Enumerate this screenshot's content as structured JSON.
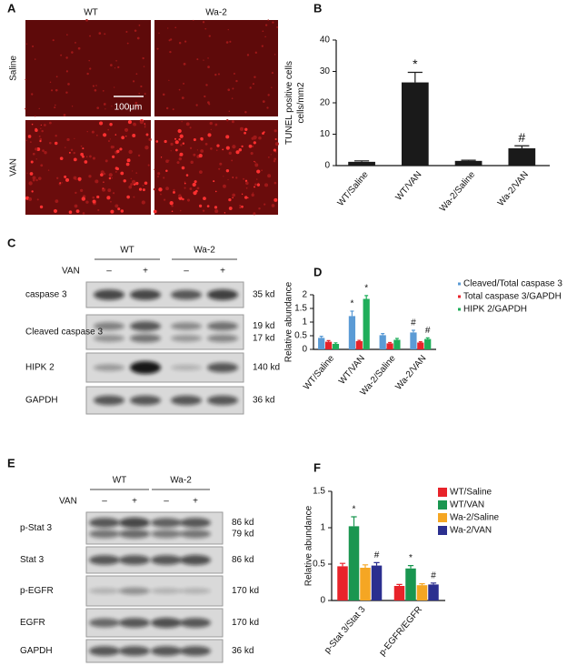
{
  "panel_labels": [
    "A",
    "B",
    "C",
    "D",
    "E",
    "F"
  ],
  "micrographs": {
    "columns": [
      "WT",
      "Wa-2"
    ],
    "rows": [
      "Saline",
      "VAN"
    ],
    "scale_bar": "100μm"
  },
  "blot_c": {
    "groups": [
      "WT",
      "Wa-2"
    ],
    "treatment": "VAN",
    "signs": [
      "–",
      "+",
      "–",
      "+"
    ],
    "rows": [
      {
        "label": "caspase 3",
        "sizes": [
          "35 kd"
        ]
      },
      {
        "label": "Cleaved caspase 3",
        "sizes": [
          "19 kd",
          "17 kd"
        ]
      },
      {
        "label": "HIPK 2",
        "sizes": [
          "140 kd"
        ]
      },
      {
        "label": "GAPDH",
        "sizes": [
          "36 kd"
        ]
      }
    ]
  },
  "blot_e": {
    "groups": [
      "WT",
      "Wa-2"
    ],
    "treatment": "VAN",
    "signs": [
      "–",
      "+",
      "–",
      "+"
    ],
    "rows": [
      {
        "label": "p-Stat 3",
        "sizes": [
          "86 kd",
          "79 kd"
        ]
      },
      {
        "label": "Stat 3",
        "sizes": [
          "86 kd"
        ]
      },
      {
        "label": "p-EGFR",
        "sizes": [
          "170 kd"
        ]
      },
      {
        "label": "EGFR",
        "sizes": [
          "170 kd"
        ]
      },
      {
        "label": "GAPDH",
        "sizes": [
          "36 kd"
        ]
      }
    ]
  },
  "chart_data": [
    {
      "type": "bar",
      "ylabel": [
        "TUNEL positive cells",
        "cells/mm2"
      ],
      "categories": [
        "WT/Saline",
        "WT/VAN",
        "Wa-2/Saline",
        "Wa-2/VAN"
      ],
      "values": [
        1.2,
        26.5,
        1.5,
        5.5
      ],
      "errors": [
        0.3,
        3.2,
        0.2,
        0.8
      ],
      "annotations": [
        null,
        "*",
        null,
        "#"
      ],
      "color": "#1a1a1a",
      "ylim": [
        0,
        40
      ],
      "yticks": [
        0,
        10,
        20,
        30,
        40
      ]
    },
    {
      "type": "bar",
      "ylabel": [
        "Relative abundance"
      ],
      "categories": [
        "WT/Saline",
        "WT/VAN",
        "Wa-2/Saline",
        "Wa-2/VAN"
      ],
      "series": [
        {
          "name": "Cleaved/Total caspase 3",
          "color": "#5b9bd5",
          "values": [
            0.42,
            1.22,
            0.52,
            0.62
          ],
          "errors": [
            0.06,
            0.18,
            0.06,
            0.08
          ],
          "annotations": [
            null,
            "*",
            null,
            "#"
          ]
        },
        {
          "name": "Total caspase 3/GAPDH",
          "color": "#e8232a",
          "values": [
            0.28,
            0.3,
            0.22,
            0.25
          ],
          "errors": [
            0.04,
            0.03,
            0.03,
            0.03
          ],
          "annotations": [
            null,
            null,
            null,
            null
          ]
        },
        {
          "name": "HIPK 2/GAPDH",
          "color": "#1fae5a",
          "values": [
            0.2,
            1.85,
            0.35,
            0.38
          ],
          "errors": [
            0.04,
            0.12,
            0.05,
            0.04
          ],
          "annotations": [
            null,
            "*",
            null,
            "#"
          ]
        }
      ],
      "ylim": [
        0,
        2
      ],
      "yticks": [
        0,
        0.5,
        1,
        1.5,
        2
      ]
    },
    {
      "type": "bar",
      "ylabel": [
        "Relative abundance"
      ],
      "categories": [
        "p-Stat 3/Stat 3",
        "p-EGFR/EGFR"
      ],
      "series": [
        {
          "name": "WT/Saline",
          "color": "#e8232a",
          "values": [
            0.47,
            0.2
          ],
          "errors": [
            0.04,
            0.02
          ],
          "annotations": [
            null,
            null
          ]
        },
        {
          "name": "WT/VAN",
          "color": "#1a9650",
          "values": [
            1.02,
            0.44
          ],
          "errors": [
            0.13,
            0.04
          ],
          "annotations": [
            "*",
            "*"
          ]
        },
        {
          "name": "Wa-2/Saline",
          "color": "#f5a623",
          "values": [
            0.45,
            0.21
          ],
          "errors": [
            0.04,
            0.02
          ],
          "annotations": [
            null,
            null
          ]
        },
        {
          "name": "Wa-2/VAN",
          "color": "#2b2f8f",
          "values": [
            0.48,
            0.22
          ],
          "errors": [
            0.04,
            0.02
          ],
          "annotations": [
            "#",
            "#"
          ]
        }
      ],
      "ylim": [
        0,
        1.5
      ],
      "yticks": [
        0,
        0.5,
        1,
        1.5
      ]
    }
  ]
}
